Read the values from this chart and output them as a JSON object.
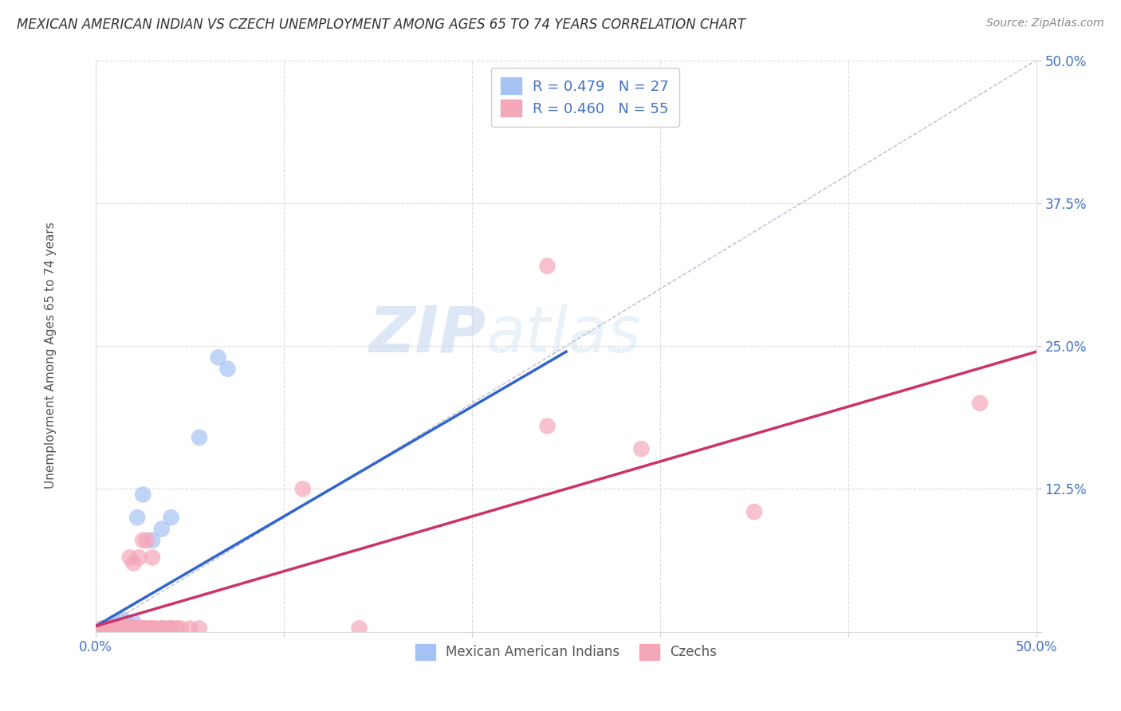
{
  "title": "MEXICAN AMERICAN INDIAN VS CZECH UNEMPLOYMENT AMONG AGES 65 TO 74 YEARS CORRELATION CHART",
  "source": "Source: ZipAtlas.com",
  "ylabel": "Unemployment Among Ages 65 to 74 years",
  "xlim": [
    0,
    0.5
  ],
  "ylim": [
    0,
    0.5
  ],
  "blue_R": 0.479,
  "blue_N": 27,
  "pink_R": 0.46,
  "pink_N": 55,
  "blue_color": "#a4c2f4",
  "pink_color": "#f4a7b9",
  "blue_line_color": "#3366cc",
  "pink_line_color": "#cc3366",
  "legend_label_blue": "Mexican American Indians",
  "legend_label_pink": "Czechs",
  "watermark_zip": "ZIP",
  "watermark_atlas": "atlas",
  "blue_line": [
    [
      0.0,
      0.005
    ],
    [
      0.25,
      0.245
    ]
  ],
  "pink_line": [
    [
      0.0,
      0.005
    ],
    [
      0.5,
      0.245
    ]
  ],
  "blue_points": [
    [
      0.005,
      0.003
    ],
    [
      0.007,
      0.003
    ],
    [
      0.008,
      0.003
    ],
    [
      0.009,
      0.003
    ],
    [
      0.01,
      0.003
    ],
    [
      0.01,
      0.005
    ],
    [
      0.01,
      0.008
    ],
    [
      0.012,
      0.003
    ],
    [
      0.013,
      0.005
    ],
    [
      0.015,
      0.003
    ],
    [
      0.015,
      0.01
    ],
    [
      0.017,
      0.003
    ],
    [
      0.018,
      0.005
    ],
    [
      0.02,
      0.003
    ],
    [
      0.02,
      0.008
    ],
    [
      0.022,
      0.1
    ],
    [
      0.025,
      0.003
    ],
    [
      0.025,
      0.12
    ],
    [
      0.03,
      0.003
    ],
    [
      0.03,
      0.08
    ],
    [
      0.035,
      0.003
    ],
    [
      0.035,
      0.09
    ],
    [
      0.04,
      0.003
    ],
    [
      0.04,
      0.1
    ],
    [
      0.055,
      0.17
    ],
    [
      0.065,
      0.24
    ],
    [
      0.07,
      0.23
    ]
  ],
  "pink_points": [
    [
      0.003,
      0.003
    ],
    [
      0.005,
      0.003
    ],
    [
      0.006,
      0.003
    ],
    [
      0.007,
      0.003
    ],
    [
      0.008,
      0.003
    ],
    [
      0.009,
      0.003
    ],
    [
      0.01,
      0.003
    ],
    [
      0.01,
      0.003
    ],
    [
      0.011,
      0.003
    ],
    [
      0.012,
      0.003
    ],
    [
      0.012,
      0.003
    ],
    [
      0.013,
      0.003
    ],
    [
      0.013,
      0.003
    ],
    [
      0.014,
      0.003
    ],
    [
      0.015,
      0.003
    ],
    [
      0.015,
      0.003
    ],
    [
      0.016,
      0.003
    ],
    [
      0.017,
      0.003
    ],
    [
      0.017,
      0.003
    ],
    [
      0.018,
      0.003
    ],
    [
      0.018,
      0.065
    ],
    [
      0.019,
      0.003
    ],
    [
      0.02,
      0.003
    ],
    [
      0.02,
      0.003
    ],
    [
      0.02,
      0.06
    ],
    [
      0.021,
      0.003
    ],
    [
      0.022,
      0.003
    ],
    [
      0.023,
      0.003
    ],
    [
      0.023,
      0.065
    ],
    [
      0.024,
      0.003
    ],
    [
      0.025,
      0.003
    ],
    [
      0.025,
      0.08
    ],
    [
      0.026,
      0.003
    ],
    [
      0.027,
      0.08
    ],
    [
      0.028,
      0.003
    ],
    [
      0.03,
      0.003
    ],
    [
      0.03,
      0.003
    ],
    [
      0.03,
      0.065
    ],
    [
      0.032,
      0.003
    ],
    [
      0.035,
      0.003
    ],
    [
      0.035,
      0.003
    ],
    [
      0.038,
      0.003
    ],
    [
      0.04,
      0.003
    ],
    [
      0.04,
      0.003
    ],
    [
      0.043,
      0.003
    ],
    [
      0.045,
      0.003
    ],
    [
      0.05,
      0.003
    ],
    [
      0.055,
      0.003
    ],
    [
      0.11,
      0.125
    ],
    [
      0.14,
      0.003
    ],
    [
      0.24,
      0.18
    ],
    [
      0.24,
      0.32
    ],
    [
      0.29,
      0.16
    ],
    [
      0.35,
      0.105
    ],
    [
      0.47,
      0.2
    ]
  ]
}
